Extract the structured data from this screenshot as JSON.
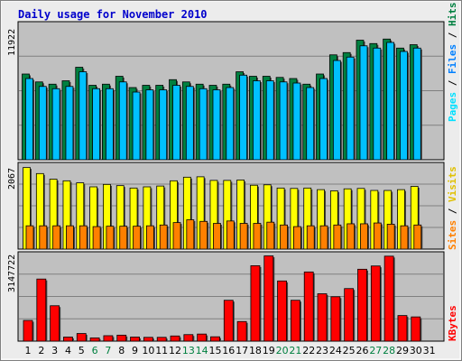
{
  "colors": {
    "page_bg": "#ececec",
    "panel_bg": "#c0c0c0",
    "title": "#0000cc",
    "hits": "#008040",
    "files": "#00c0ff",
    "pages": "#00e0ff",
    "visits": "#ffff00",
    "sites": "#ff8000",
    "kbytes": "#ff0000",
    "weekend_label": "#008040"
  },
  "chart_data": [
    {
      "type": "bar",
      "title": "Daily usage for November 2010",
      "panel": "hits-files-pages",
      "ymax_label": "11922",
      "ylim": [
        0,
        11922
      ],
      "legend": [
        "Pages",
        "Files",
        "Hits"
      ],
      "categories": [
        "1",
        "2",
        "3",
        "4",
        "5",
        "6",
        "7",
        "8",
        "9",
        "10",
        "11",
        "12",
        "13",
        "14",
        "15",
        "16",
        "17",
        "18",
        "19",
        "20",
        "21",
        "22",
        "23",
        "24",
        "25",
        "26",
        "27",
        "28",
        "29",
        "30",
        "31"
      ],
      "series": [
        {
          "name": "Hits",
          "values": [
            7600,
            6900,
            6700,
            7000,
            8200,
            6600,
            6700,
            7400,
            6400,
            6600,
            6600,
            7100,
            6900,
            6700,
            6600,
            6700,
            7800,
            7400,
            7400,
            7300,
            7200,
            6700,
            7600,
            9300,
            9500,
            10600,
            10300,
            10700,
            9900,
            10200,
            null
          ]
        },
        {
          "name": "Files",
          "values": [
            7200,
            6500,
            6300,
            6500,
            7800,
            6300,
            6300,
            6900,
            6000,
            6200,
            6200,
            6600,
            6500,
            6300,
            6200,
            6400,
            7500,
            7000,
            7000,
            6900,
            6800,
            6400,
            7200,
            8800,
            9100,
            10100,
            9900,
            10400,
            9600,
            9900,
            null
          ]
        },
        {
          "name": "Pages",
          "values": [
            null,
            null,
            null,
            null,
            null,
            null,
            null,
            null,
            null,
            null,
            null,
            null,
            null,
            null,
            null,
            null,
            null,
            null,
            null,
            null,
            null,
            null,
            null,
            null,
            null,
            null,
            null,
            null,
            null,
            null,
            null
          ]
        }
      ]
    },
    {
      "type": "bar",
      "panel": "visits-sites",
      "ymax_label": "2067",
      "ylim": [
        0,
        2067
      ],
      "legend": [
        "Sites",
        "Visits"
      ],
      "categories": [
        "1",
        "2",
        "3",
        "4",
        "5",
        "6",
        "7",
        "8",
        "9",
        "10",
        "11",
        "12",
        "13",
        "14",
        "15",
        "16",
        "17",
        "18",
        "19",
        "20",
        "21",
        "22",
        "23",
        "24",
        "25",
        "26",
        "27",
        "28",
        "29",
        "30",
        "31"
      ],
      "series": [
        {
          "name": "Visits",
          "values": [
            2030,
            1880,
            1740,
            1700,
            1650,
            1550,
            1610,
            1580,
            1520,
            1550,
            1570,
            1700,
            1790,
            1800,
            1710,
            1710,
            1720,
            1590,
            1600,
            1520,
            1510,
            1520,
            1480,
            1450,
            1500,
            1510,
            1460,
            1460,
            1480,
            1560,
            null
          ]
        },
        {
          "name": "Sites",
          "values": [
            580,
            580,
            580,
            580,
            580,
            560,
            570,
            570,
            570,
            580,
            600,
            660,
            730,
            690,
            640,
            700,
            640,
            640,
            670,
            600,
            560,
            580,
            580,
            600,
            630,
            630,
            650,
            620,
            580,
            600,
            null
          ]
        }
      ]
    },
    {
      "type": "bar",
      "panel": "kbytes",
      "ymax_label": "3147722",
      "ylim": [
        0,
        3147722
      ],
      "legend": [
        "KBytes"
      ],
      "categories": [
        "1",
        "2",
        "3",
        "4",
        "5",
        "6",
        "7",
        "8",
        "9",
        "10",
        "11",
        "12",
        "13",
        "14",
        "15",
        "16",
        "17",
        "18",
        "19",
        "20",
        "21",
        "22",
        "23",
        "24",
        "25",
        "26",
        "27",
        "28",
        "29",
        "30",
        "31"
      ],
      "series": [
        {
          "name": "KBytes",
          "values": [
            760000,
            2280000,
            1300000,
            150000,
            280000,
            120000,
            200000,
            220000,
            150000,
            140000,
            140000,
            190000,
            240000,
            260000,
            160000,
            1500000,
            720000,
            2770000,
            3130000,
            2210000,
            1500000,
            2540000,
            1740000,
            1630000,
            1930000,
            2640000,
            2760000,
            3120000,
            940000,
            890000,
            null
          ]
        }
      ]
    }
  ],
  "x_labels": [
    {
      "text": "1",
      "weekend": false
    },
    {
      "text": "2",
      "weekend": false
    },
    {
      "text": "3",
      "weekend": false
    },
    {
      "text": "4",
      "weekend": false
    },
    {
      "text": "5",
      "weekend": false
    },
    {
      "text": "6",
      "weekend": true
    },
    {
      "text": "7",
      "weekend": true
    },
    {
      "text": "8",
      "weekend": false
    },
    {
      "text": "9",
      "weekend": false
    },
    {
      "text": "10",
      "weekend": false
    },
    {
      "text": "11",
      "weekend": false
    },
    {
      "text": "12",
      "weekend": false
    },
    {
      "text": "13",
      "weekend": true
    },
    {
      "text": "14",
      "weekend": true
    },
    {
      "text": "15",
      "weekend": false
    },
    {
      "text": "16",
      "weekend": false
    },
    {
      "text": "17",
      "weekend": false
    },
    {
      "text": "18",
      "weekend": false
    },
    {
      "text": "19",
      "weekend": false
    },
    {
      "text": "20",
      "weekend": true
    },
    {
      "text": "21",
      "weekend": true
    },
    {
      "text": "22",
      "weekend": false
    },
    {
      "text": "23",
      "weekend": false
    },
    {
      "text": "24",
      "weekend": false
    },
    {
      "text": "25",
      "weekend": false
    },
    {
      "text": "26",
      "weekend": false
    },
    {
      "text": "27",
      "weekend": true
    },
    {
      "text": "28",
      "weekend": true
    },
    {
      "text": "29",
      "weekend": false
    },
    {
      "text": "30",
      "weekend": false
    },
    {
      "text": "31",
      "weekend": false
    }
  ]
}
